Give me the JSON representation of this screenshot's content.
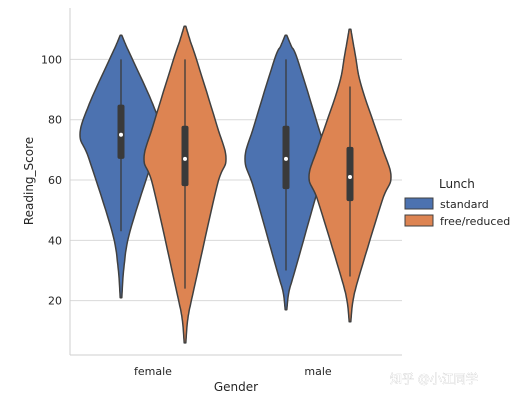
{
  "chart_data": {
    "type": "violin",
    "xlabel": "Gender",
    "ylabel": "Reading_Score",
    "categories": [
      "female",
      "male"
    ],
    "ylim": [
      0,
      113
    ],
    "yticks": [
      20,
      40,
      60,
      80,
      100
    ],
    "grid": true,
    "legend": {
      "title": "Lunch",
      "placement": "right"
    },
    "series": [
      {
        "name": "standard",
        "color": "#4c72b0",
        "groups": [
          {
            "category": "female",
            "min": 21,
            "q1": 67,
            "median": 75,
            "q3": 85,
            "max": 108,
            "whisker_low": 43,
            "whisker_high": 100
          },
          {
            "category": "male",
            "min": 17,
            "q1": 57,
            "median": 67,
            "q3": 78,
            "max": 108,
            "whisker_low": 30,
            "whisker_high": 100
          }
        ]
      },
      {
        "name": "free/reduced",
        "color": "#dd8452",
        "groups": [
          {
            "category": "female",
            "min": 6,
            "q1": 58,
            "median": 67,
            "q3": 78,
            "max": 111,
            "whisker_low": 24,
            "whisker_high": 100
          },
          {
            "category": "male",
            "min": 13,
            "q1": 53,
            "median": 61,
            "q3": 71,
            "max": 110,
            "whisker_low": 28,
            "whisker_high": 91
          }
        ]
      }
    ]
  },
  "watermark": "知乎 @小江同学"
}
